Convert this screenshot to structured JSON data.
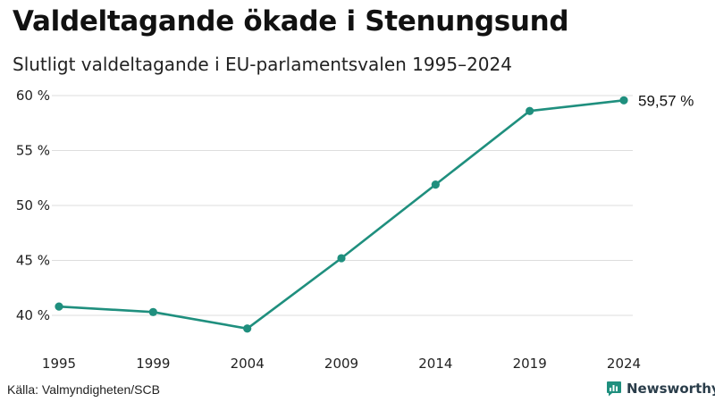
{
  "header": {
    "title": "Valdeltagande ökade i Stenungsund",
    "subtitle": "Slutligt valdeltagande i EU-parlamentsvalen 1995–2024"
  },
  "footer": {
    "source": "Källa: Valmyndigheten/SCB",
    "brand": "Newsworthy",
    "brand_icon": "bar-chart-speech-icon",
    "brand_color": "#1f8f7e"
  },
  "chart_data": {
    "type": "line",
    "title": "Valdeltagande ökade i Stenungsund",
    "subtitle": "Slutligt valdeltagande i EU-parlamentsvalen 1995–2024",
    "xlabel": "",
    "ylabel": "",
    "x": [
      "1995",
      "1999",
      "2004",
      "2009",
      "2014",
      "2019",
      "2024"
    ],
    "series": [
      {
        "name": "Valdeltagande",
        "values": [
          40.8,
          40.3,
          38.8,
          45.2,
          51.9,
          58.6,
          59.57
        ],
        "color": "#1f8f7e"
      }
    ],
    "ylim": [
      37.5,
      61
    ],
    "yticks": [
      40,
      45,
      50,
      55,
      60
    ],
    "ytick_labels": [
      "40 %",
      "45 %",
      "50 %",
      "55 %",
      "60 %"
    ],
    "grid": true,
    "gridline_color": "#dddddd",
    "end_label": "59,57 %"
  }
}
